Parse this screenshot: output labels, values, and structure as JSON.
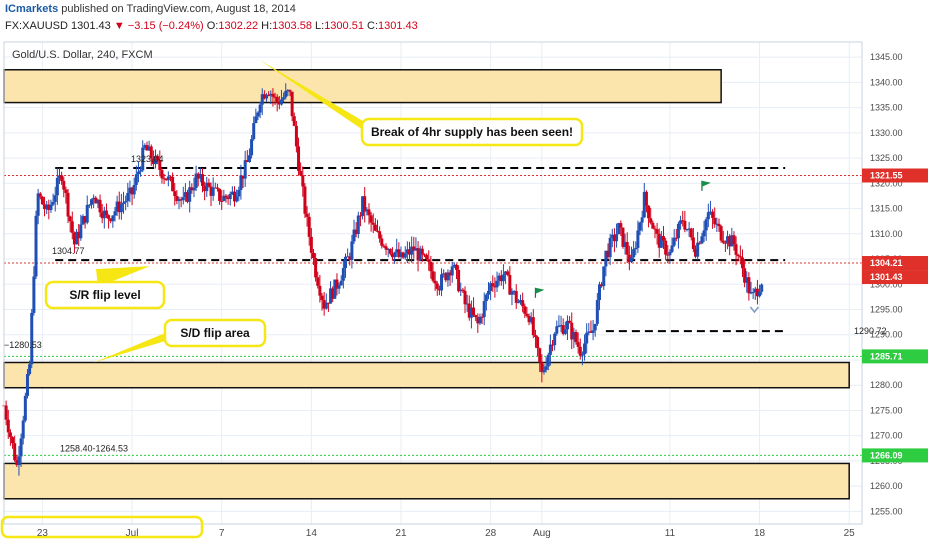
{
  "header": {
    "publisher": "ICmarkets",
    "published_text": "published on TradingView.com, August 18, 2014",
    "symbol": "FX:XAUUSD",
    "last": "1301.43",
    "change": "−3.15 (−0.24%)",
    "open_label": "O:",
    "open": "1302.22",
    "high_label": "H:",
    "high": "1303.58",
    "low_label": "L:",
    "low": "1300.51",
    "close_label": "C:",
    "close": "1301.43"
  },
  "colors": {
    "up": "#1f4fb4",
    "down": "#d0021b",
    "zone_fill": "#fbe5ad",
    "callout_border": "#f5e614",
    "resistance": "#e0302a",
    "support": "#2ecc40",
    "grid": "#e8eef5"
  },
  "chart_data": {
    "type": "candlestick",
    "title": "Gold/U.S. Dollar, 240, FXCM",
    "ylim": [
      1252.5,
      1348
    ],
    "xlim_days": [
      "2014-06-20",
      "2014-08-26"
    ],
    "y_ticks": [
      1255,
      1260,
      1265,
      1270,
      1275,
      1280,
      1285,
      1290,
      1295,
      1300,
      1305,
      1310,
      1315,
      1320,
      1325,
      1330,
      1335,
      1340,
      1345
    ],
    "x_ticks": [
      {
        "date": "2014-06-23",
        "label": "23"
      },
      {
        "date": "2014-06-30",
        "label": "Jul"
      },
      {
        "date": "2014-07-07",
        "label": "7"
      },
      {
        "date": "2014-07-14",
        "label": "14"
      },
      {
        "date": "2014-07-21",
        "label": "21"
      },
      {
        "date": "2014-07-28",
        "label": "28"
      },
      {
        "date": "2014-08-01",
        "label": "Aug"
      },
      {
        "date": "2014-08-11",
        "label": "11"
      },
      {
        "date": "2014-08-18",
        "label": "18"
      },
      {
        "date": "2014-08-25",
        "label": "25"
      }
    ],
    "anchors": [
      {
        "date": "2014-06-20",
        "price": 1276
      },
      {
        "date": "2014-06-21",
        "price": 1264
      },
      {
        "date": "2014-06-22",
        "price": 1284
      },
      {
        "date": "2014-06-22.6",
        "price": 1318
      },
      {
        "date": "2014-06-23.4",
        "price": 1314
      },
      {
        "date": "2014-06-24.5",
        "price": 1322
      },
      {
        "date": "2014-06-25.5",
        "price": 1308
      },
      {
        "date": "2014-06-27",
        "price": 1318
      },
      {
        "date": "2014-06-28",
        "price": 1313
      },
      {
        "date": "2014-06-30",
        "price": 1318
      },
      {
        "date": "2014-07-01",
        "price": 1327
      },
      {
        "date": "2014-07-03",
        "price": 1320
      },
      {
        "date": "2014-07-04",
        "price": 1316
      },
      {
        "date": "2014-07-05",
        "price": 1321
      },
      {
        "date": "2014-07-07",
        "price": 1317
      },
      {
        "date": "2014-07-08",
        "price": 1318
      },
      {
        "date": "2014-07-09",
        "price": 1324
      },
      {
        "date": "2014-07-10",
        "price": 1337
      },
      {
        "date": "2014-07-10.6",
        "price": 1339
      },
      {
        "date": "2014-07-11.3",
        "price": 1336
      },
      {
        "date": "2014-07-12.3",
        "price": 1338
      },
      {
        "date": "2014-07-13",
        "price": 1324
      },
      {
        "date": "2014-07-13.6",
        "price": 1313
      },
      {
        "date": "2014-07-14.3",
        "price": 1303
      },
      {
        "date": "2014-07-15",
        "price": 1296
      },
      {
        "date": "2014-07-16",
        "price": 1300
      },
      {
        "date": "2014-07-17",
        "price": 1306
      },
      {
        "date": "2014-07-18",
        "price": 1316
      },
      {
        "date": "2014-07-19",
        "price": 1310
      },
      {
        "date": "2014-07-21",
        "price": 1305
      },
      {
        "date": "2014-07-22",
        "price": 1307
      },
      {
        "date": "2014-07-23",
        "price": 1304
      },
      {
        "date": "2014-07-24",
        "price": 1300
      },
      {
        "date": "2014-07-25",
        "price": 1304
      },
      {
        "date": "2014-07-26",
        "price": 1296
      },
      {
        "date": "2014-07-27",
        "price": 1292
      },
      {
        "date": "2014-07-28",
        "price": 1300
      },
      {
        "date": "2014-07-29",
        "price": 1302
      },
      {
        "date": "2014-07-30",
        "price": 1297
      },
      {
        "date": "2014-07-31",
        "price": 1294
      },
      {
        "date": "2014-08-01",
        "price": 1282
      },
      {
        "date": "2014-08-02",
        "price": 1291
      },
      {
        "date": "2014-08-03",
        "price": 1292
      },
      {
        "date": "2014-08-04",
        "price": 1287
      },
      {
        "date": "2014-08-05",
        "price": 1291
      },
      {
        "date": "2014-08-06",
        "price": 1306
      },
      {
        "date": "2014-08-07",
        "price": 1311
      },
      {
        "date": "2014-08-08",
        "price": 1304
      },
      {
        "date": "2014-08-09",
        "price": 1317
      },
      {
        "date": "2014-08-10",
        "price": 1309
      },
      {
        "date": "2014-08-11",
        "price": 1306
      },
      {
        "date": "2014-08-12",
        "price": 1313
      },
      {
        "date": "2014-08-13",
        "price": 1307
      },
      {
        "date": "2014-08-14",
        "price": 1314
      },
      {
        "date": "2014-08-15",
        "price": 1310
      },
      {
        "date": "2014-08-16",
        "price": 1308
      },
      {
        "date": "2014-08-16.7",
        "price": 1303
      },
      {
        "date": "2014-08-17.4",
        "price": 1297
      },
      {
        "date": "2014-08-18.2",
        "price": 1301
      }
    ],
    "zones": [
      {
        "name": "supply-zone-top",
        "from": "2014-06-20",
        "to": "2014-08-15",
        "low": 1336,
        "high": 1342.5
      },
      {
        "name": "demand-zone-middle",
        "from": "2014-06-20",
        "to": "2014-08-25",
        "low": 1279.5,
        "high": 1284.5
      },
      {
        "name": "demand-zone-bottom",
        "from": "2014-06-20",
        "to": "2014-08-25",
        "low": 1257.5,
        "high": 1264.5
      }
    ],
    "levels": [
      {
        "name": "level-1323-04",
        "price": 1323.04,
        "from": "2014-06-24",
        "to": "2014-08-20",
        "style": "black-dashed",
        "label": "1323.04"
      },
      {
        "name": "level-1304-77",
        "price": 1304.77,
        "from": "2014-06-24",
        "to": "2014-08-20",
        "style": "black-dashed",
        "label": "1304.77"
      },
      {
        "name": "level-1290-72",
        "price": 1290.72,
        "from": "2014-08-06",
        "to": "2014-08-20",
        "style": "black-dashed",
        "label": "1290.72"
      },
      {
        "name": "level-1321-55",
        "price": 1321.55,
        "style": "red-dotted",
        "label": "1321.55"
      },
      {
        "name": "level-1304-21",
        "price": 1304.21,
        "style": "red-dotted",
        "label": "1304.21"
      },
      {
        "name": "level-1285-71",
        "price": 1285.71,
        "style": "green-dotted",
        "label": "1285.71"
      },
      {
        "name": "level-1266-09",
        "price": 1266.09,
        "style": "green-dotted",
        "label": "1266.09"
      }
    ],
    "price_tags": [
      {
        "label": "1321.55",
        "price": 1321.55,
        "color": "#e0302a"
      },
      {
        "label": "1304.21",
        "price": 1304.21,
        "color": "#e0302a"
      },
      {
        "label": "1301.43",
        "price": 1301.43,
        "color": "#e0302a"
      },
      {
        "label": "1285.71",
        "price": 1285.71,
        "color": "#2ecc40"
      },
      {
        "label": "1266.09",
        "price": 1266.09,
        "color": "#2ecc40"
      }
    ],
    "annotations": {
      "level_1280": "1280.53",
      "range_label": "1258.40-1264.53",
      "callout_supply": "Break of 4hr supply has been seen!",
      "callout_sr": "S/R flip level",
      "callout_sd": "S/D flip area"
    }
  }
}
